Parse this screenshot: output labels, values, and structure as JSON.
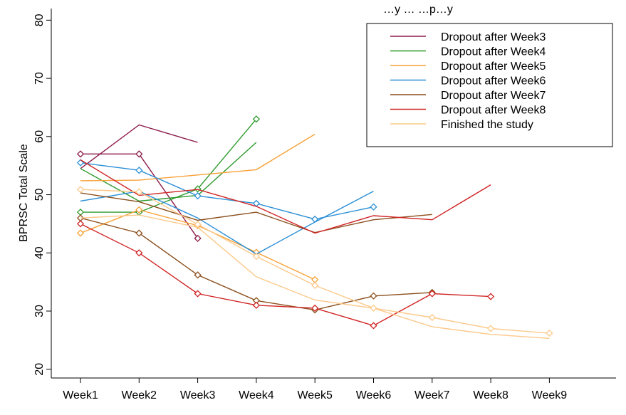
{
  "chart_data": {
    "type": "line",
    "title": "…y … …p…y",
    "xlabel": "",
    "ylabel": "BPRSC Total Scale",
    "categories": [
      "Week1",
      "Week2",
      "Week3",
      "Week4",
      "Week5",
      "Week6",
      "Week7",
      "Week8",
      "Week9"
    ],
    "ylim": [
      18.5,
      82
    ],
    "yticks": [
      20,
      30,
      40,
      50,
      60,
      70,
      80
    ],
    "grid": false,
    "legend_position": "top-right",
    "series": [
      {
        "name": "Dropout after Week3",
        "color": "#8b1a4a",
        "mean": [
          54.5,
          62.0,
          59.0,
          null,
          null,
          null,
          null,
          null,
          null
        ],
        "subjects": [
          [
            57.0,
            57.0,
            42.5,
            null,
            null,
            null,
            null,
            null,
            null
          ]
        ]
      },
      {
        "name": "Dropout after Week4",
        "color": "#2e9a2e",
        "mean": [
          54.5,
          48.9,
          49.9,
          59.0,
          null,
          null,
          null,
          null,
          null
        ],
        "subjects": [
          [
            47.0,
            47.0,
            51.0,
            63.0,
            null,
            null,
            null,
            null,
            null
          ]
        ]
      },
      {
        "name": "Dropout after Week5",
        "color": "#f7a136",
        "mean": [
          52.4,
          52.5,
          53.4,
          54.3,
          60.4,
          null,
          null,
          null,
          null
        ],
        "subjects": [
          [
            43.4,
            47.4,
            44.7,
            40.1,
            35.4,
            null,
            null,
            null,
            null
          ]
        ]
      },
      {
        "name": "Dropout after Week6",
        "color": "#2a8fd6",
        "mean": [
          48.9,
          50.6,
          46.0,
          39.8,
          45.3,
          50.6,
          null,
          null,
          null
        ],
        "subjects": [
          [
            55.5,
            54.2,
            49.8,
            48.5,
            45.8,
            47.9,
            null,
            null,
            null
          ]
        ]
      },
      {
        "name": "Dropout after Week7",
        "color": "#8b4f1d",
        "mean": [
          50.3,
          48.8,
          45.6,
          47.0,
          43.5,
          45.7,
          46.6,
          null,
          null
        ],
        "subjects": [
          [
            46.0,
            43.4,
            36.2,
            31.8,
            30.2,
            32.6,
            33.2,
            null,
            null
          ]
        ]
      },
      {
        "name": "Dropout after Week8",
        "color": "#d02424",
        "mean": [
          56.0,
          49.9,
          50.9,
          48.0,
          43.4,
          46.4,
          45.7,
          51.7,
          null
        ],
        "subjects": [
          [
            45.0,
            40.0,
            33.0,
            31.0,
            30.5,
            27.5,
            33.0,
            32.5,
            null
          ]
        ]
      },
      {
        "name": "Finished the study",
        "color": "#fcc98a",
        "mean": [
          46.0,
          46.5,
          44.4,
          35.9,
          31.9,
          30.5,
          27.3,
          26.0,
          25.3
        ],
        "subjects": [
          [
            50.9,
            50.5,
            44.9,
            39.4,
            34.4,
            30.5,
            28.9,
            27.0,
            26.2
          ]
        ]
      }
    ]
  }
}
